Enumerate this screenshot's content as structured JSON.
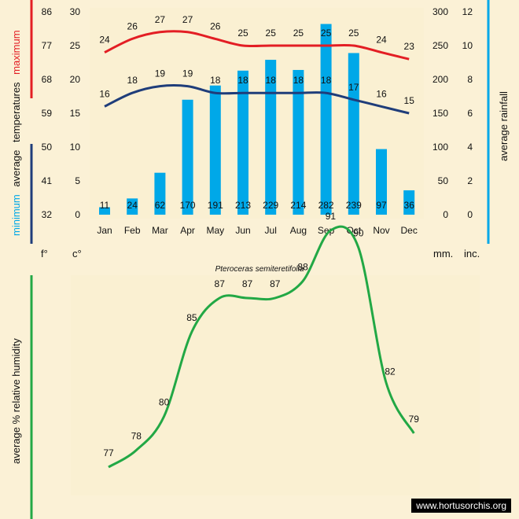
{
  "caption": "Pteroceras semiteretifolia",
  "watermark": "www.hortusorchis.org",
  "colors": {
    "max_line": "#e31e24",
    "min_line": "#1f3d7a",
    "rain_bars": "#00a8e8",
    "humidity_line": "#22a845"
  },
  "chart_data": [
    {
      "type": "bar",
      "categories": [
        "Jan",
        "Feb",
        "Mar",
        "Apr",
        "May",
        "Jun",
        "Jul",
        "Aug",
        "Sep",
        "Oct",
        "Nov",
        "Dec"
      ],
      "ylabel_left": [
        "minimum",
        "average",
        "temperatures",
        "maximum"
      ],
      "ylabel_right": "average rainfall",
      "unit_labels": {
        "fahrenheit": "f°",
        "celsius": "c°",
        "mm": "mm.",
        "inch": "inc."
      },
      "axes": {
        "celsius": {
          "ylim": [
            0,
            30
          ],
          "ticks": [
            "0",
            "5",
            "10",
            "15",
            "20",
            "25",
            "30"
          ]
        },
        "fahrenheit": {
          "ticks": [
            "32",
            "41",
            "50",
            "59",
            "68",
            "77",
            "86"
          ]
        },
        "mm": {
          "ylim": [
            0,
            300
          ],
          "ticks": [
            "0",
            "50",
            "100",
            "150",
            "200",
            "250",
            "300"
          ]
        },
        "inch": {
          "ticks": [
            "0",
            "2",
            "4",
            "6",
            "8",
            "10",
            "12"
          ]
        }
      },
      "series": [
        {
          "name": "maximum",
          "kind": "line",
          "unit": "c",
          "values": [
            24,
            26,
            27,
            27,
            26,
            25,
            25,
            25,
            25,
            25,
            24,
            23
          ]
        },
        {
          "name": "minimum",
          "kind": "line",
          "unit": "c",
          "values": [
            16,
            18,
            19,
            19,
            18,
            18,
            18,
            18,
            18,
            17,
            16,
            15
          ]
        },
        {
          "name": "average rainfall",
          "kind": "bar",
          "unit": "mm",
          "values": [
            11,
            24,
            62,
            170,
            191,
            213,
            229,
            214,
            282,
            239,
            97,
            36
          ]
        }
      ]
    },
    {
      "type": "line",
      "ylabel": "average %  relative humidity",
      "ylim": [
        75,
        93
      ],
      "series": [
        {
          "values": [
            77,
            78,
            80,
            85,
            87,
            87,
            87,
            88,
            91,
            90,
            82,
            79
          ]
        }
      ]
    }
  ]
}
